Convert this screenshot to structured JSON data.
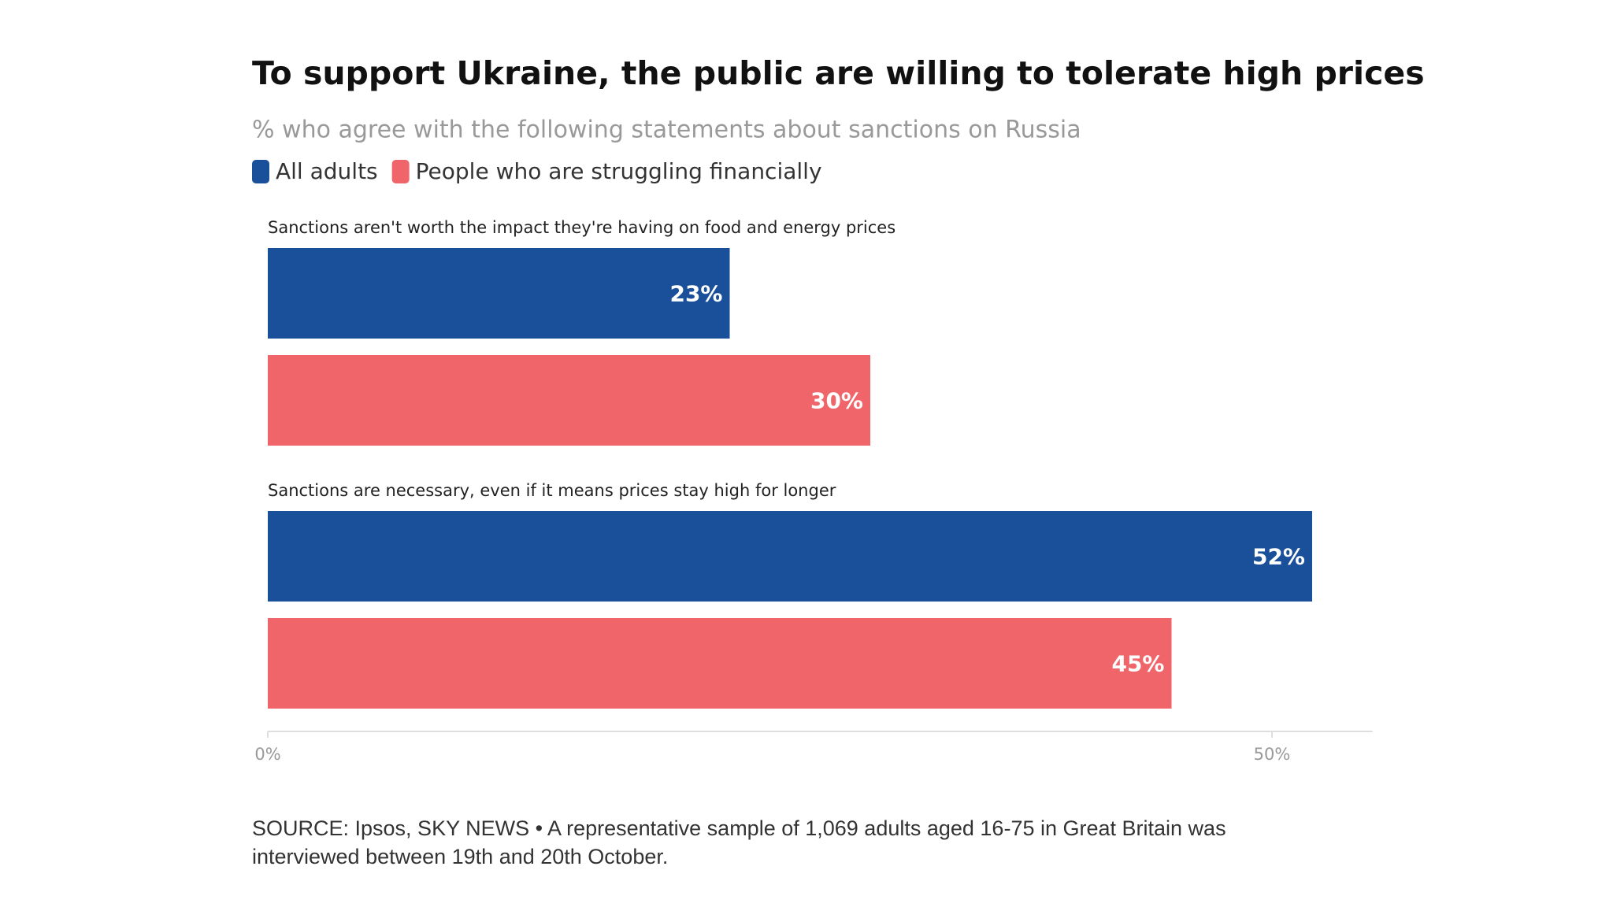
{
  "chart_data": {
    "type": "bar",
    "orientation": "horizontal",
    "title": "To support Ukraine, the public are willing to tolerate high prices",
    "subtitle": "% who agree with the following statements about sanctions on Russia",
    "categories": [
      "Sanctions aren't worth the impact they're having on food and energy prices",
      "Sanctions are necessary, even if it means prices stay high for longer"
    ],
    "series": [
      {
        "name": "All adults",
        "color": "#1a4f9a",
        "values": [
          23,
          52
        ],
        "value_labels": [
          "23%",
          "52%"
        ]
      },
      {
        "name": "People who are struggling financially",
        "color": "#f0656a",
        "values": [
          30,
          45
        ],
        "value_labels": [
          "30%",
          "45%"
        ]
      }
    ],
    "xlim": [
      0,
      55
    ],
    "xticks": [
      {
        "value": 0,
        "label": "0%"
      },
      {
        "value": 50,
        "label": "50%"
      }
    ],
    "legend": "top-left",
    "source": "SOURCE: Ipsos, SKY NEWS • A representative sample of 1,069 adults aged 16-75 in Great Britain was interviewed between 19th and 20th October."
  }
}
